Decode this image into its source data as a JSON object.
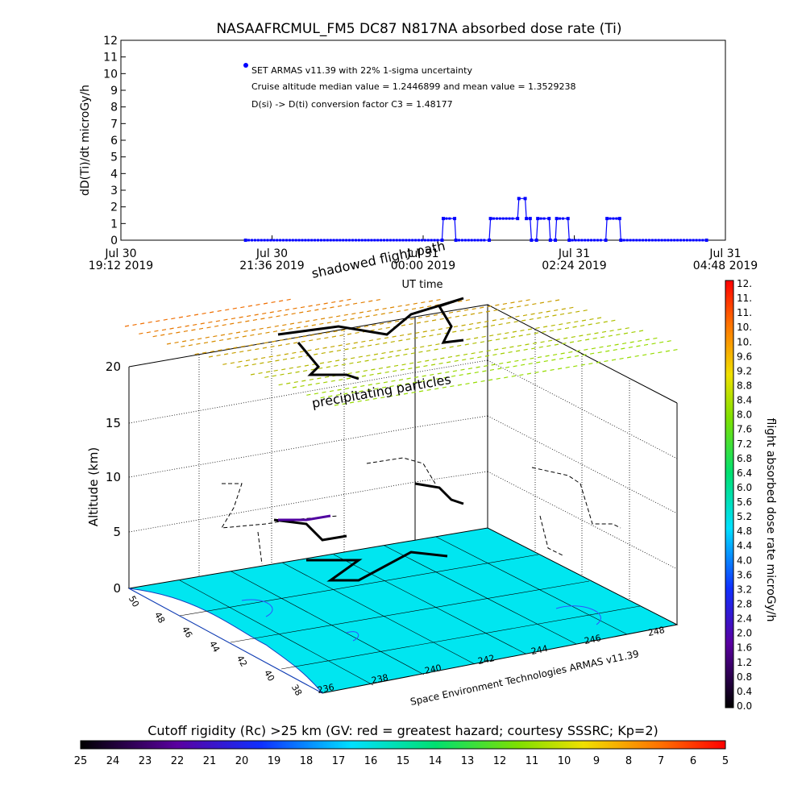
{
  "chart_data": [
    {
      "type": "line",
      "title": "NASAAFRCMUL_FM5 DC87 N817NA absorbed dose rate (Ti)",
      "ylabel": "dD(Ti)/dt microGy/h",
      "xlabel": "UT time",
      "ylim": [
        0,
        12
      ],
      "yticks": [
        "0",
        "1",
        "2",
        "3",
        "4",
        "5",
        "6",
        "7",
        "8",
        "9",
        "10",
        "11",
        "12"
      ],
      "xticks": [
        {
          "line1": "Jul 30",
          "line2": "19:12 2019",
          "hours": 0
        },
        {
          "line1": "Jul 30",
          "line2": "21:36 2019",
          "hours": 2.4
        },
        {
          "line1": "Jul 31",
          "line2": "00:00 2019",
          "hours": 4.8
        },
        {
          "line1": "Jul 31",
          "line2": "02:24 2019",
          "hours": 7.2
        },
        {
          "line1": "Jul 31",
          "line2": "04:48 2019",
          "hours": 9.6
        }
      ],
      "legend": [
        "SET ARMAS v11.39 with 22% 1-sigma uncertainty",
        "Cruise altitude median value = 1.2446899 and mean value = 1.3529238",
        "D(si) -> D(ti) conversion factor C3 = 1.48177"
      ],
      "series": [
        {
          "color": "#0000ff",
          "points": [
            [
              1.98,
              0
            ],
            [
              5.1,
              0
            ],
            [
              5.12,
              1.3
            ],
            [
              5.3,
              1.3
            ],
            [
              5.32,
              0
            ],
            [
              5.85,
              0
            ],
            [
              5.87,
              1.3
            ],
            [
              6.3,
              1.3
            ],
            [
              6.32,
              2.5
            ],
            [
              6.42,
              2.5
            ],
            [
              6.44,
              1.3
            ],
            [
              6.5,
              1.3
            ],
            [
              6.52,
              0
            ],
            [
              6.6,
              0
            ],
            [
              6.62,
              1.3
            ],
            [
              6.8,
              1.3
            ],
            [
              6.82,
              0
            ],
            [
              6.9,
              0
            ],
            [
              6.92,
              1.3
            ],
            [
              7.1,
              1.3
            ],
            [
              7.12,
              0
            ],
            [
              7.7,
              0
            ],
            [
              7.72,
              1.3
            ],
            [
              7.92,
              1.3
            ],
            [
              7.94,
              0
            ],
            [
              9.3,
              0
            ]
          ]
        }
      ]
    },
    {
      "type": "scatter",
      "subtype": "3d-flight-path",
      "zlabel": "Altitude (km)",
      "zticks": [
        "0",
        "5",
        "10",
        "15",
        "20"
      ],
      "yticks": [
        "38",
        "40",
        "42",
        "44",
        "46",
        "48",
        "50"
      ],
      "xticks": [
        "236",
        "238",
        "240",
        "242",
        "244",
        "246",
        "248"
      ],
      "annotations": [
        "shadowed flight path",
        "precipitating particles",
        "Space Environment Technologies ARMAS v11.39"
      ],
      "colorbar": {
        "label": "flight absorbed dose rate microGy/h",
        "ticks": [
          "0.0",
          "0.4",
          "0.8",
          "1.2",
          "1.6",
          "2.0",
          "2.4",
          "2.8",
          "3.2",
          "3.6",
          "4.0",
          "4.4",
          "4.8",
          "5.2",
          "5.6",
          "6.0",
          "6.4",
          "6.8",
          "7.2",
          "7.6",
          "8.0",
          "8.4",
          "8.8",
          "9.2",
          "9.6",
          "10.",
          "10.",
          "11.",
          "11.",
          "12."
        ]
      }
    },
    {
      "type": "colorbar",
      "title": "Cutoff rigidity (Rc) >25 km (GV: red = greatest hazard; courtesy SSSRC; Kp=2)",
      "ticks": [
        "25",
        "24",
        "23",
        "22",
        "21",
        "20",
        "19",
        "18",
        "17",
        "16",
        "15",
        "14",
        "13",
        "12",
        "11",
        "10",
        "9",
        "8",
        "7",
        "6",
        "5"
      ]
    }
  ]
}
